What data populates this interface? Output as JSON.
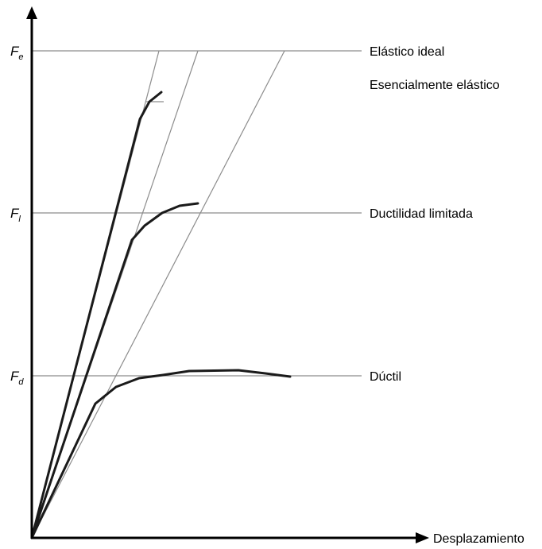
{
  "y_axis": {
    "labels": [
      {
        "main": "F",
        "sub": "e"
      },
      {
        "main": "F",
        "sub": "l"
      },
      {
        "main": "F",
        "sub": "d"
      }
    ]
  },
  "x_axis": {
    "label": "Desplazamiento"
  },
  "curve_labels": {
    "elastic_ideal": "Elástico ideal",
    "essentially_elastic": "Esencialmente elástico",
    "limited_ductility": "Ductilidad limitada",
    "ductile": "Dúctil"
  }
}
